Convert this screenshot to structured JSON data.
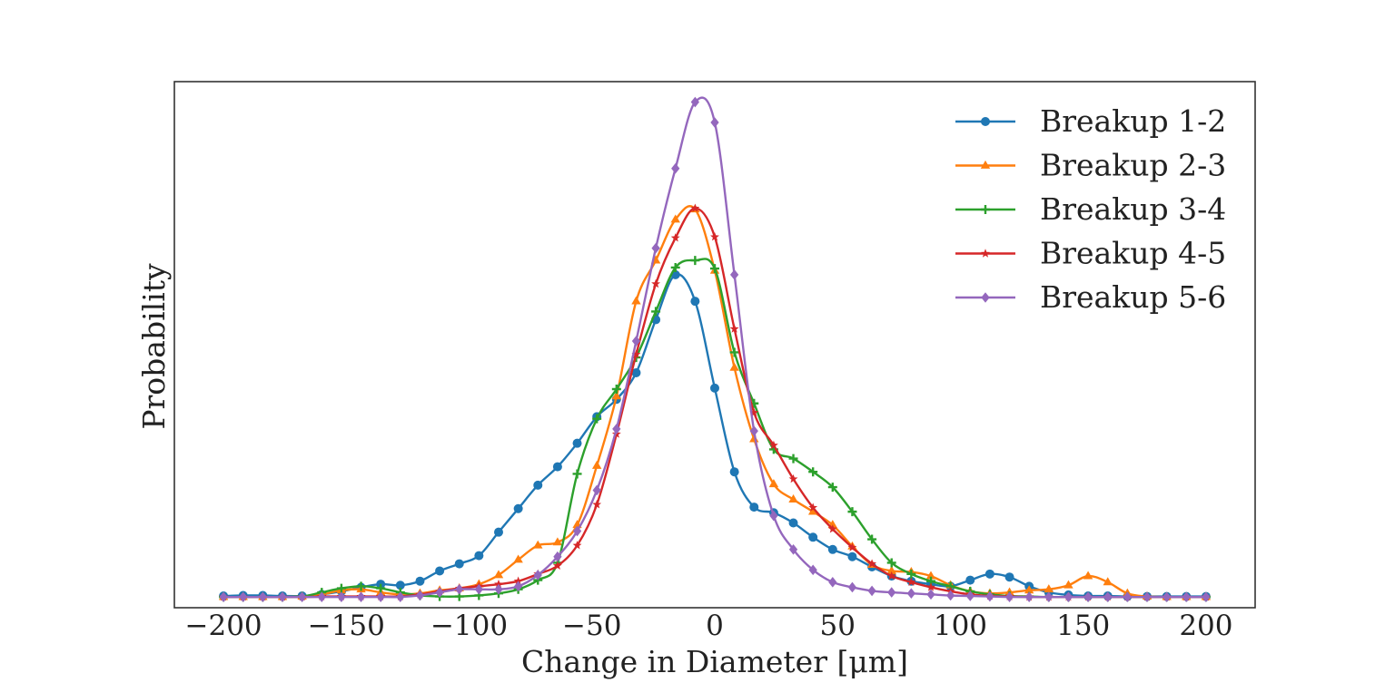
{
  "chart_data": {
    "type": "line",
    "title": "",
    "xlabel": "Change in Diameter [μm]",
    "ylabel": "Probability",
    "xlim": [
      -220,
      220
    ],
    "ylim": [
      -0.002,
      0.101
    ],
    "xticks": [
      -200,
      -150,
      -100,
      -50,
      0,
      50,
      100,
      150,
      200
    ],
    "xtick_labels": [
      "−200",
      "−150",
      "−100",
      "−50",
      "0",
      "50",
      "100",
      "150",
      "200"
    ],
    "yticks": [],
    "grid": false,
    "legend_position": "top-right",
    "series": [
      {
        "name": "Breakup 1-2",
        "color": "#1f77b4",
        "marker": "circle",
        "x": [
          -200,
          -192,
          -184,
          -176,
          -168,
          -160,
          -152,
          -144,
          -136,
          -128,
          -120,
          -112,
          -104,
          -96,
          -88,
          -80,
          -72,
          -64,
          -56,
          -48,
          -40,
          -32,
          -24,
          -16,
          -8,
          0,
          8,
          16,
          24,
          32,
          40,
          48,
          56,
          64,
          72,
          80,
          88,
          96,
          104,
          112,
          120,
          128,
          136,
          144,
          152,
          160,
          168,
          176,
          184,
          192,
          200
        ],
        "y": [
          0.0003,
          0.0004,
          0.0004,
          0.0003,
          0.0003,
          0.0006,
          0.0012,
          0.002,
          0.0026,
          0.0024,
          0.0032,
          0.0052,
          0.0066,
          0.0082,
          0.0128,
          0.0174,
          0.022,
          0.0256,
          0.0302,
          0.0354,
          0.0388,
          0.044,
          0.0544,
          0.0632,
          0.058,
          0.041,
          0.0246,
          0.0177,
          0.0166,
          0.0146,
          0.0118,
          0.0094,
          0.008,
          0.006,
          0.0042,
          0.0032,
          0.0026,
          0.0022,
          0.0034,
          0.0046,
          0.004,
          0.0022,
          0.001,
          0.0005,
          0.0003,
          0.0003,
          0.0002,
          0.0002,
          0.0002,
          0.0002,
          0.0002
        ]
      },
      {
        "name": "Breakup 2-3",
        "color": "#ff7f0e",
        "marker": "triangle",
        "x": [
          -200,
          -192,
          -184,
          -176,
          -168,
          -160,
          -152,
          -144,
          -136,
          -128,
          -120,
          -112,
          -104,
          -96,
          -88,
          -80,
          -72,
          -64,
          -56,
          -48,
          -40,
          -32,
          -24,
          -16,
          -8,
          0,
          8,
          16,
          24,
          32,
          40,
          48,
          56,
          64,
          72,
          80,
          88,
          96,
          104,
          112,
          120,
          128,
          136,
          144,
          152,
          160,
          168,
          176,
          184,
          192,
          200
        ],
        "y": [
          0.0001,
          0.0001,
          0.0001,
          0.0001,
          0.0002,
          0.0006,
          0.0014,
          0.0016,
          0.001,
          0.0006,
          0.0008,
          0.0014,
          0.0018,
          0.0026,
          0.0044,
          0.0074,
          0.0102,
          0.0108,
          0.0142,
          0.0258,
          0.0394,
          0.058,
          0.066,
          0.074,
          0.076,
          0.064,
          0.045,
          0.031,
          0.0222,
          0.0192,
          0.0168,
          0.0142,
          0.01,
          0.0064,
          0.0052,
          0.005,
          0.0042,
          0.0024,
          0.0012,
          0.0008,
          0.001,
          0.0014,
          0.0016,
          0.0024,
          0.0042,
          0.003,
          0.0008,
          0.0002,
          0.0001,
          0.0001,
          0.0001
        ]
      },
      {
        "name": "Breakup 3-4",
        "color": "#2ca02c",
        "marker": "plus",
        "x": [
          -200,
          -192,
          -184,
          -176,
          -168,
          -160,
          -152,
          -144,
          -136,
          -128,
          -120,
          -112,
          -104,
          -96,
          -88,
          -80,
          -72,
          -64,
          -56,
          -48,
          -40,
          -32,
          -24,
          -16,
          -8,
          0,
          8,
          16,
          24,
          32,
          40,
          48,
          56,
          64,
          72,
          80,
          88,
          96,
          104,
          112,
          120,
          128,
          136,
          144,
          152,
          160,
          168,
          176,
          184,
          192,
          200
        ],
        "y": [
          0.0001,
          0.0001,
          0.0001,
          0.0001,
          0.0002,
          0.001,
          0.0018,
          0.0022,
          0.0018,
          0.001,
          0.0004,
          0.0002,
          0.0002,
          0.0004,
          0.0008,
          0.0016,
          0.0034,
          0.0068,
          0.0242,
          0.035,
          0.0408,
          0.047,
          0.056,
          0.0646,
          0.066,
          0.0644,
          0.048,
          0.038,
          0.029,
          0.0272,
          0.0246,
          0.0216,
          0.0168,
          0.0114,
          0.0068,
          0.0046,
          0.0032,
          0.0022,
          0.0012,
          0.0006,
          0.0003,
          0.0002,
          0.0001,
          0.0001,
          0.0001,
          0.0001,
          0.0001,
          0.0001,
          0.0001,
          0.0001,
          0.0001
        ]
      },
      {
        "name": "Breakup 4-5",
        "color": "#d62728",
        "marker": "star",
        "x": [
          -200,
          -192,
          -184,
          -176,
          -168,
          -160,
          -152,
          -144,
          -136,
          -128,
          -120,
          -112,
          -104,
          -96,
          -88,
          -80,
          -72,
          -64,
          -56,
          -48,
          -40,
          -32,
          -24,
          -16,
          -8,
          0,
          8,
          16,
          24,
          32,
          40,
          48,
          56,
          64,
          72,
          80,
          88,
          96,
          104,
          112,
          120,
          128,
          136,
          144,
          152,
          160,
          168,
          176,
          184,
          192,
          200
        ],
        "y": [
          0.0001,
          0.0001,
          0.0001,
          0.0001,
          0.0001,
          0.0002,
          0.0002,
          0.0002,
          0.0002,
          0.0002,
          0.0006,
          0.0012,
          0.0018,
          0.0022,
          0.0026,
          0.0032,
          0.0046,
          0.0062,
          0.0102,
          0.0182,
          0.032,
          0.0476,
          0.0614,
          0.0704,
          0.0762,
          0.0706,
          0.0526,
          0.0362,
          0.0298,
          0.0232,
          0.0176,
          0.0134,
          0.0098,
          0.0066,
          0.0042,
          0.003,
          0.002,
          0.0012,
          0.0006,
          0.0003,
          0.0002,
          0.0001,
          0.0001,
          0.0001,
          0.0001,
          0.0001,
          0.0001,
          0.0001,
          0.0001,
          0.0001,
          0.0001
        ]
      },
      {
        "name": "Breakup 5-6",
        "color": "#9467bd",
        "marker": "diamond",
        "x": [
          -200,
          -192,
          -184,
          -176,
          -168,
          -160,
          -152,
          -144,
          -136,
          -128,
          -120,
          -112,
          -104,
          -96,
          -88,
          -80,
          -72,
          -64,
          -56,
          -48,
          -40,
          -32,
          -24,
          -16,
          -8,
          0,
          8,
          16,
          24,
          32,
          40,
          48,
          56,
          64,
          72,
          80,
          88,
          96,
          104,
          112,
          120,
          128,
          136,
          144,
          152,
          160,
          168,
          176,
          184,
          192,
          200
        ],
        "y": [
          0.0001,
          0.0001,
          0.0001,
          0.0001,
          0.0001,
          0.0001,
          0.0001,
          0.0001,
          0.0001,
          0.0001,
          0.0004,
          0.001,
          0.0016,
          0.0016,
          0.0016,
          0.0022,
          0.0044,
          0.008,
          0.013,
          0.021,
          0.033,
          0.0502,
          0.0684,
          0.084,
          0.097,
          0.093,
          0.0632,
          0.0326,
          0.016,
          0.0094,
          0.0054,
          0.003,
          0.002,
          0.0013,
          0.001,
          0.0008,
          0.0006,
          0.0004,
          0.0003,
          0.0002,
          0.0001,
          0.0001,
          0.0001,
          0.0001,
          0.0001,
          0.0001,
          0.0001,
          0.0001,
          0.0001,
          0.0001,
          0.0001
        ]
      }
    ]
  }
}
